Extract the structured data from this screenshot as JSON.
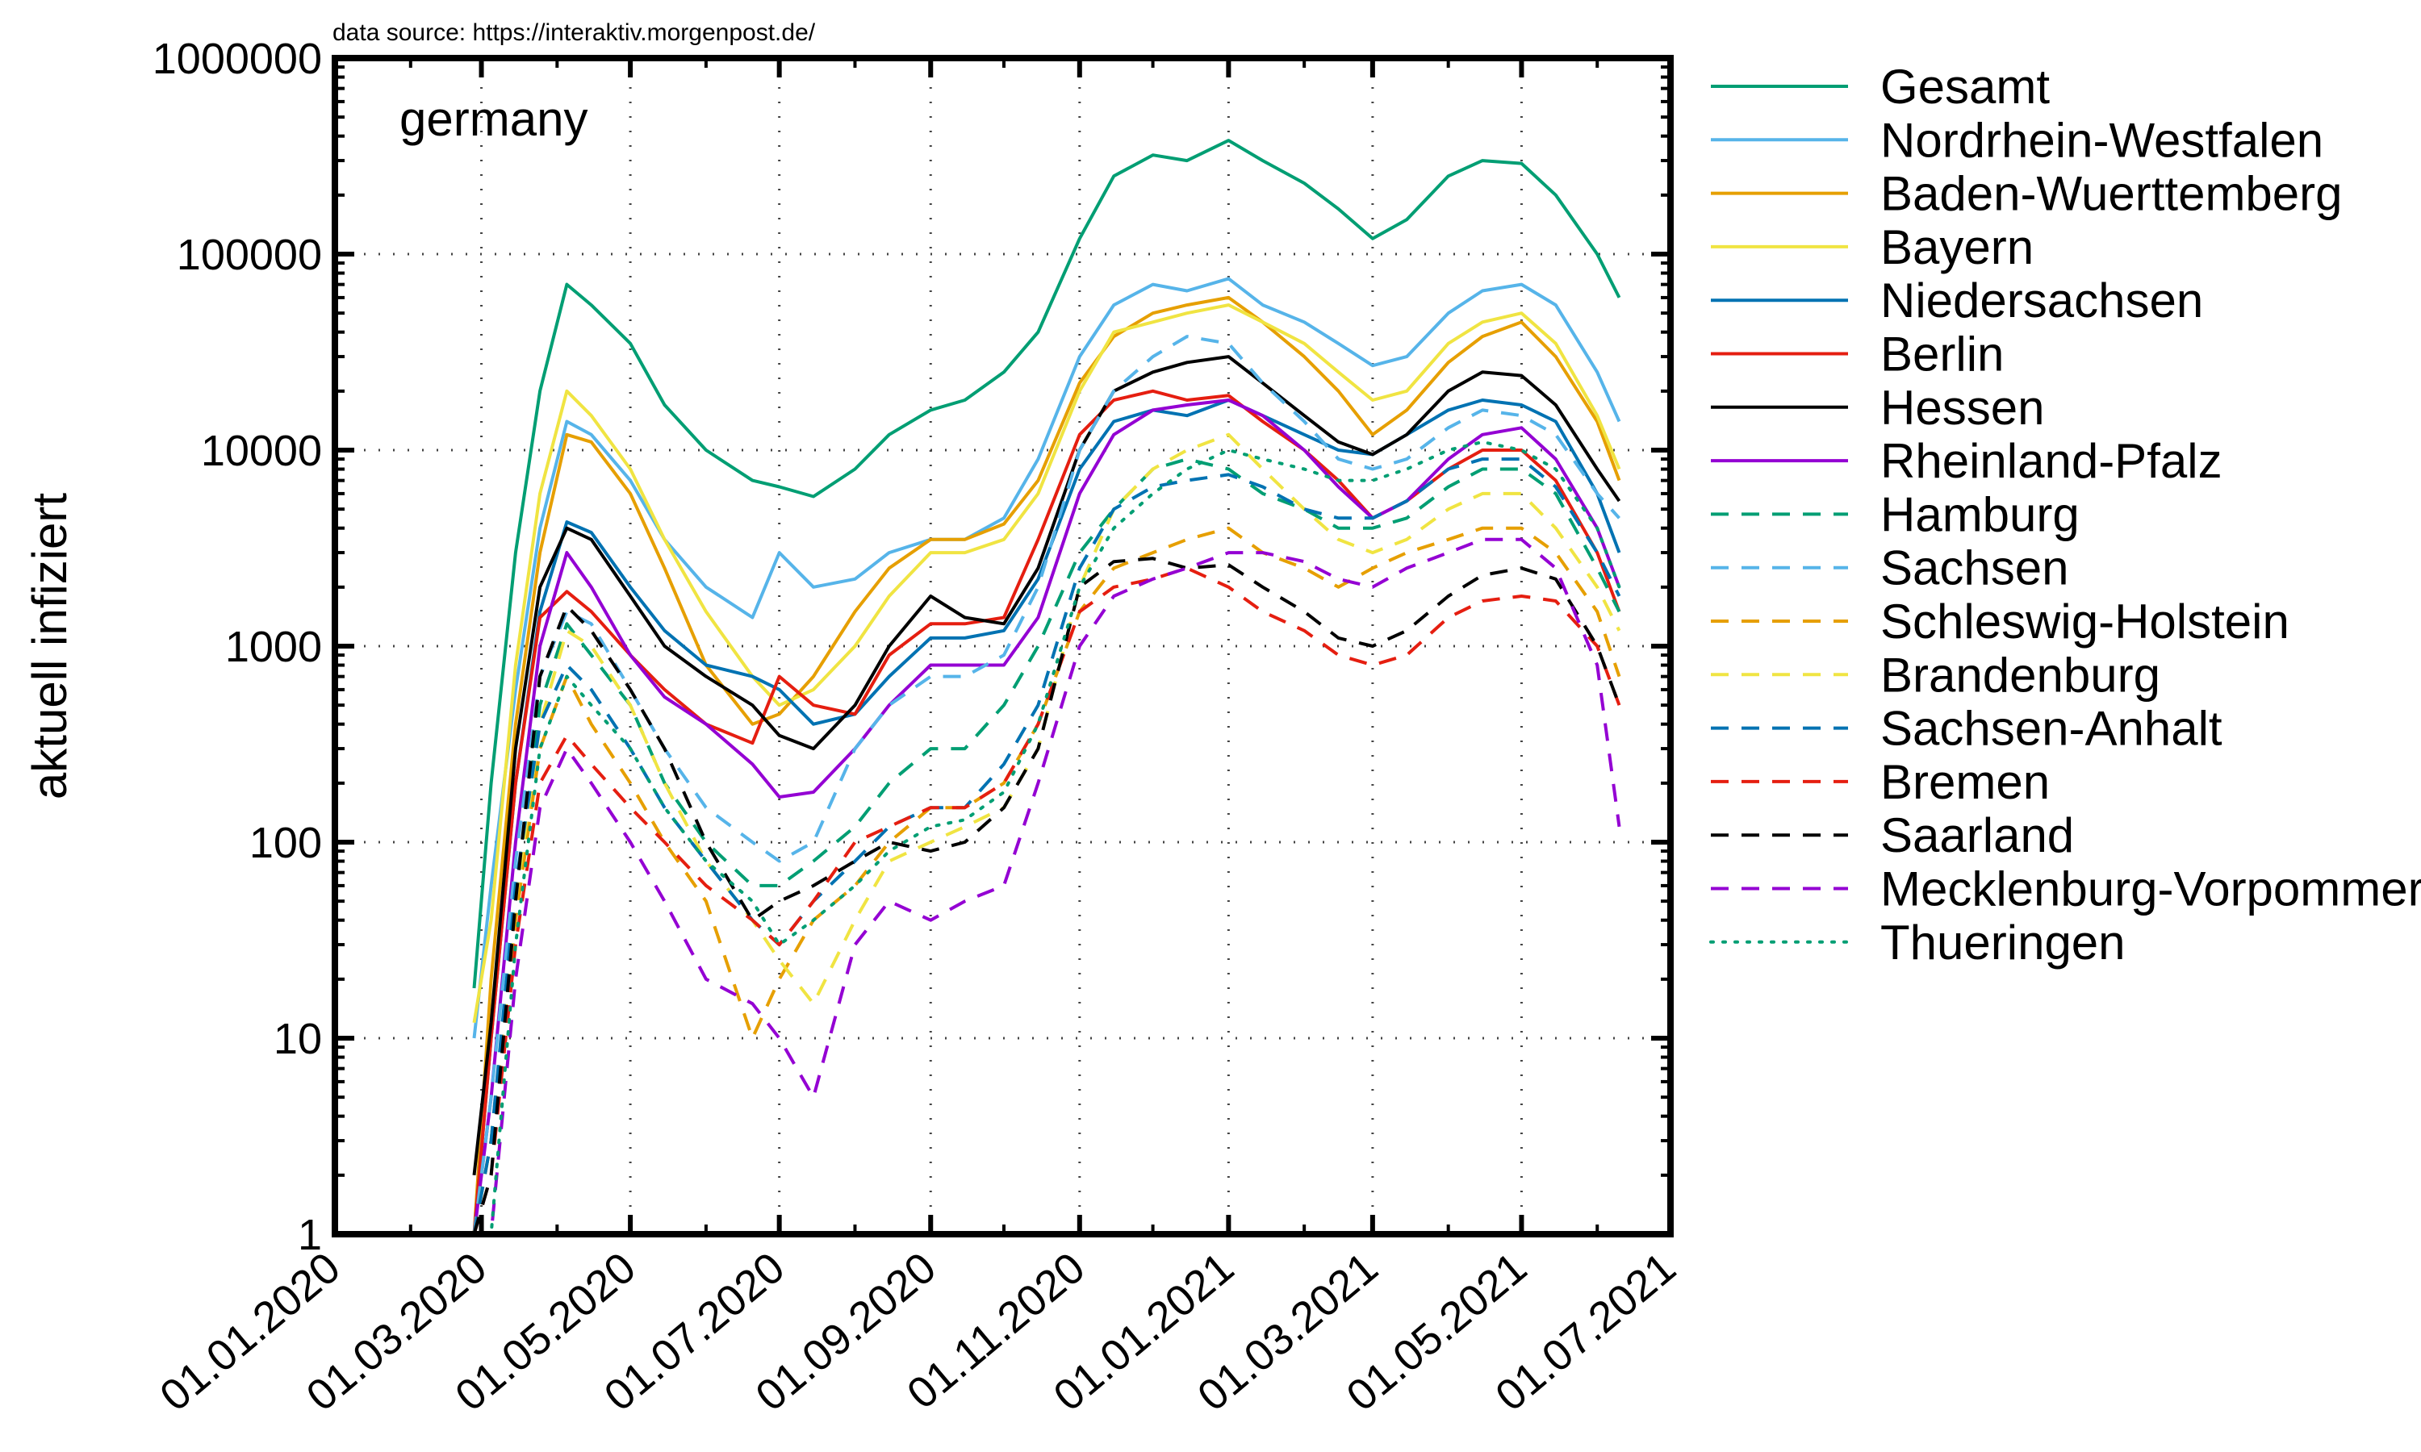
{
  "source_note": "data source: https://interaktiv.morgenpost.de/",
  "chart_data": {
    "type": "line",
    "title": "",
    "annotation": "germany",
    "ylabel": "aktuell infiziert",
    "xlabel": "",
    "yscale": "log",
    "ylim": [
      1,
      1000000
    ],
    "xlim": [
      "2020-01-01",
      "2021-07-01"
    ],
    "x_ticks": [
      "01.01.2020",
      "01.03.2020",
      "01.05.2020",
      "01.07.2020",
      "01.09.2020",
      "01.11.2020",
      "01.01.2021",
      "01.03.2021",
      "01.05.2021",
      "01.07.2021"
    ],
    "y_ticks": [
      "1",
      "10",
      "100",
      "1000",
      "10000",
      "100000",
      "1000000"
    ],
    "grid": true,
    "legend_position": "right-outside",
    "dates": [
      "2020-02-27",
      "2020-03-05",
      "2020-03-15",
      "2020-03-25",
      "2020-04-05",
      "2020-04-15",
      "2020-05-01",
      "2020-05-15",
      "2020-06-01",
      "2020-06-20",
      "2020-07-01",
      "2020-07-15",
      "2020-08-01",
      "2020-08-15",
      "2020-09-01",
      "2020-09-15",
      "2020-10-01",
      "2020-10-15",
      "2020-11-01",
      "2020-11-15",
      "2020-12-01",
      "2020-12-15",
      "2021-01-01",
      "2021-01-15",
      "2021-02-01",
      "2021-02-15",
      "2021-03-01",
      "2021-03-15",
      "2021-04-01",
      "2021-04-15",
      "2021-05-01",
      "2021-05-15",
      "2021-06-01",
      "2021-06-10"
    ],
    "series": [
      {
        "name": "Gesamt",
        "color": "#009e73",
        "dash": "solid",
        "values": [
          18,
          200,
          3000,
          20000,
          70000,
          55000,
          35000,
          17000,
          10000,
          7000,
          6500,
          5800,
          8000,
          12000,
          16000,
          18000,
          25000,
          40000,
          120000,
          250000,
          320000,
          300000,
          380000,
          300000,
          230000,
          170000,
          120000,
          150000,
          250000,
          300000,
          290000,
          200000,
          100000,
          60000
        ]
      },
      {
        "name": "Nordrhein-Westfalen",
        "color": "#56b4e9",
        "dash": "solid",
        "values": [
          10,
          60,
          600,
          4000,
          14000,
          12000,
          7000,
          3500,
          2000,
          1400,
          3000,
          2000,
          2200,
          3000,
          3500,
          3500,
          4500,
          9000,
          30000,
          55000,
          70000,
          65000,
          75000,
          55000,
          45000,
          35000,
          27000,
          30000,
          50000,
          65000,
          70000,
          55000,
          25000,
          14000
        ]
      },
      {
        "name": "Baden-Wuerttemberg",
        "color": "#e69f00",
        "dash": "solid",
        "values": [
          1,
          20,
          400,
          3000,
          12000,
          11000,
          6000,
          2500,
          800,
          400,
          450,
          700,
          1500,
          2500,
          3500,
          3500,
          4200,
          7000,
          22000,
          38000,
          50000,
          55000,
          60000,
          45000,
          30000,
          20000,
          12000,
          16000,
          28000,
          38000,
          45000,
          30000,
          14000,
          7000
        ]
      },
      {
        "name": "Bayern",
        "color": "#f0e442",
        "dash": "solid",
        "values": [
          12,
          40,
          800,
          6000,
          20000,
          15000,
          8000,
          3500,
          1500,
          700,
          500,
          600,
          1000,
          1800,
          3000,
          3000,
          3500,
          6000,
          20000,
          40000,
          45000,
          50000,
          55000,
          45000,
          35000,
          25000,
          18000,
          20000,
          35000,
          45000,
          50000,
          35000,
          15000,
          8000
        ]
      },
      {
        "name": "Niedersachsen",
        "color": "#0072b2",
        "dash": "solid",
        "values": [
          1,
          10,
          200,
          1500,
          4300,
          3800,
          2000,
          1200,
          800,
          700,
          600,
          400,
          450,
          700,
          1100,
          1100,
          1200,
          2200,
          8000,
          14000,
          16000,
          15000,
          18000,
          15000,
          12000,
          10000,
          9500,
          12000,
          16000,
          18000,
          17000,
          14000,
          6000,
          3000
        ]
      },
      {
        "name": "Berlin",
        "color": "#e51e10",
        "dash": "solid",
        "values": [
          1,
          10,
          200,
          1400,
          1900,
          1500,
          900,
          600,
          400,
          320,
          700,
          500,
          450,
          900,
          1300,
          1300,
          1400,
          3500,
          12000,
          18000,
          20000,
          18000,
          19000,
          14000,
          10000,
          7000,
          4500,
          5500,
          8000,
          10000,
          10000,
          7000,
          3000,
          1500
        ]
      },
      {
        "name": "Hessen",
        "color": "#000000",
        "dash": "solid",
        "values": [
          2,
          12,
          300,
          2000,
          4000,
          3500,
          1800,
          1000,
          700,
          500,
          350,
          300,
          500,
          1000,
          1800,
          1400,
          1300,
          2500,
          10000,
          20000,
          25000,
          28000,
          30000,
          22000,
          15000,
          11000,
          9500,
          12000,
          20000,
          25000,
          24000,
          17000,
          8000,
          5500
        ]
      },
      {
        "name": "Rheinland-Pfalz",
        "color": "#9400d3",
        "dash": "solid",
        "values": [
          1,
          5,
          100,
          1000,
          3000,
          2000,
          900,
          550,
          400,
          250,
          170,
          180,
          300,
          500,
          800,
          800,
          800,
          1400,
          6000,
          12000,
          16000,
          17000,
          18000,
          15000,
          10000,
          6500,
          4500,
          5500,
          9000,
          12000,
          13000,
          9000,
          4000,
          2000
        ]
      },
      {
        "name": "Hamburg",
        "color": "#009e73",
        "dash": "dashed",
        "values": [
          1,
          3,
          50,
          500,
          1300,
          900,
          500,
          200,
          100,
          60,
          60,
          80,
          120,
          200,
          300,
          300,
          500,
          1000,
          3000,
          5000,
          8000,
          9000,
          8000,
          6000,
          5000,
          4000,
          4000,
          4500,
          6500,
          8000,
          8000,
          6000,
          2500,
          1500
        ]
      },
      {
        "name": "Sachsen",
        "color": "#56b4e9",
        "dash": "dashed",
        "values": [
          1,
          5,
          80,
          700,
          1500,
          1300,
          600,
          300,
          150,
          100,
          80,
          100,
          300,
          500,
          700,
          700,
          900,
          2000,
          10000,
          20000,
          30000,
          38000,
          35000,
          22000,
          14000,
          9000,
          8000,
          9000,
          13000,
          16000,
          15000,
          12000,
          6000,
          4500
        ]
      },
      {
        "name": "Schleswig-Holstein",
        "color": "#e69f00",
        "dash": "dashed",
        "values": [
          1,
          3,
          40,
          300,
          700,
          400,
          200,
          100,
          50,
          10,
          20,
          40,
          60,
          100,
          150,
          150,
          200,
          400,
          1500,
          2500,
          3000,
          3500,
          4000,
          3000,
          2500,
          2000,
          2500,
          3000,
          3500,
          4000,
          4000,
          3000,
          1500,
          700
        ]
      },
      {
        "name": "Brandenburg",
        "color": "#f0e442",
        "dash": "dashed",
        "values": [
          1,
          3,
          50,
          400,
          1200,
          1000,
          500,
          200,
          80,
          40,
          25,
          15,
          40,
          80,
          100,
          120,
          150,
          300,
          2000,
          5000,
          8000,
          10000,
          12000,
          8000,
          5000,
          3500,
          3000,
          3500,
          5000,
          6000,
          6000,
          4000,
          2000,
          1200
        ]
      },
      {
        "name": "Sachsen-Anhalt",
        "color": "#0072b2",
        "dash": "dashed",
        "values": [
          1,
          3,
          60,
          400,
          800,
          600,
          300,
          150,
          80,
          40,
          30,
          50,
          80,
          120,
          150,
          150,
          250,
          500,
          2500,
          5000,
          6500,
          7000,
          7500,
          6500,
          5000,
          4500,
          4500,
          5500,
          8000,
          9000,
          9000,
          6500,
          3000,
          1800
        ]
      },
      {
        "name": "Bremen",
        "color": "#e51e10",
        "dash": "dashed",
        "values": [
          1,
          2,
          30,
          200,
          350,
          250,
          150,
          100,
          60,
          40,
          30,
          50,
          100,
          120,
          150,
          150,
          200,
          400,
          1500,
          2000,
          2200,
          2500,
          2000,
          1500,
          1200,
          900,
          800,
          900,
          1400,
          1700,
          1800,
          1700,
          1000,
          500
        ]
      },
      {
        "name": "Saarland",
        "color": "#000000",
        "dash": "dashed",
        "values": [
          1,
          2,
          50,
          700,
          1600,
          1200,
          600,
          300,
          100,
          40,
          50,
          60,
          80,
          100,
          90,
          100,
          150,
          300,
          2000,
          2700,
          2800,
          2500,
          2600,
          2000,
          1500,
          1100,
          1000,
          1200,
          1800,
          2300,
          2500,
          2200,
          1000,
          500
        ]
      },
      {
        "name": "Mecklenburg-Vorpommern",
        "color": "#9400d3",
        "dash": "dashed",
        "values": [
          1,
          1,
          20,
          150,
          300,
          200,
          100,
          50,
          20,
          15,
          10,
          5,
          30,
          50,
          40,
          50,
          60,
          200,
          1000,
          1800,
          2200,
          2500,
          3000,
          3000,
          2700,
          2200,
          2000,
          2500,
          3000,
          3500,
          3500,
          2500,
          800,
          120
        ]
      },
      {
        "name": "Thueringen",
        "color": "#009e73",
        "dash": "dotted",
        "values": [
          1,
          1,
          30,
          300,
          700,
          500,
          300,
          150,
          80,
          50,
          30,
          40,
          60,
          90,
          120,
          130,
          180,
          400,
          2000,
          4000,
          6000,
          8000,
          10000,
          9000,
          8000,
          7000,
          7000,
          8000,
          10000,
          11000,
          10000,
          8000,
          4000,
          2000
        ]
      }
    ]
  }
}
